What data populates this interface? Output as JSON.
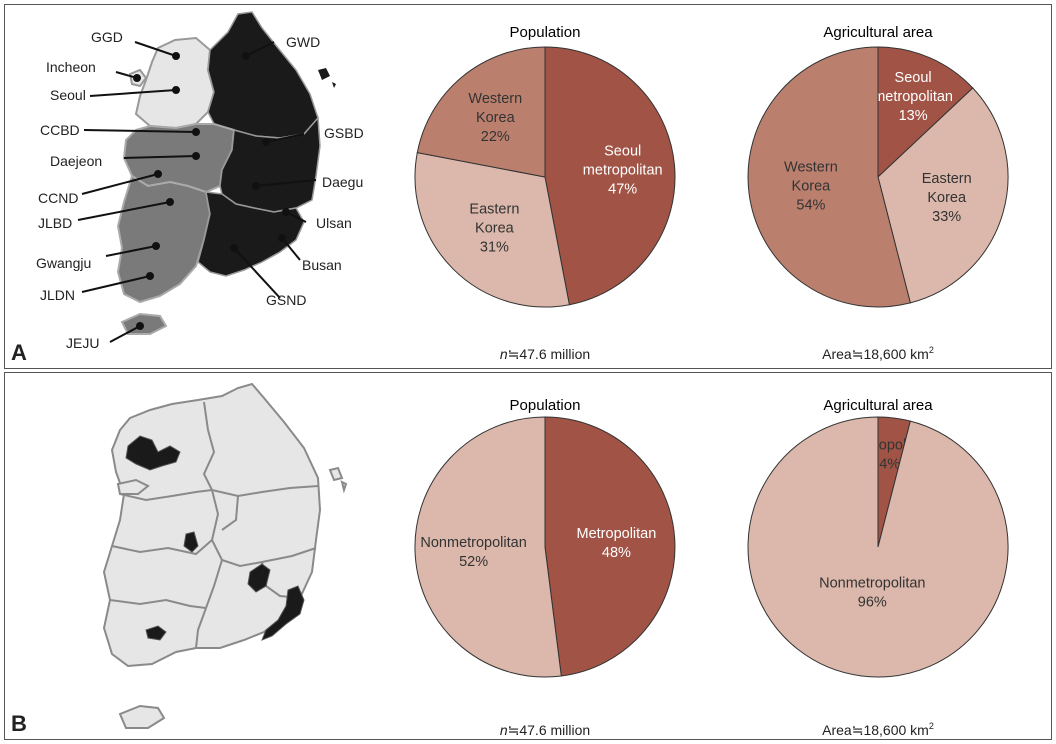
{
  "panels": {
    "a": {
      "letter": "A",
      "map_labels": [
        "GGD",
        "Incheon",
        "Seoul",
        "CCBD",
        "Daejeon",
        "CCND",
        "JLBD",
        "Gwangju",
        "JLDN",
        "JEJU",
        "GWD",
        "GSBD",
        "Daegu",
        "Ulsan",
        "Busan",
        "GSND"
      ]
    },
    "b": {
      "letter": "B"
    }
  },
  "colors": {
    "dark_red": "#a15446",
    "mid_red": "#bb7f6e",
    "light_pink": "#dbb8ab",
    "map_dark": "#1a1a1a",
    "map_gray": "#7a7a7a",
    "map_light": "#e6e6e6"
  },
  "chart_data": [
    {
      "type": "pie",
      "panel": "A",
      "title": "Population",
      "slices": [
        {
          "label": [
            "Seoul",
            "metropolitan"
          ],
          "value": 47,
          "pct": "47%",
          "color": "#a15446",
          "text": "light"
        },
        {
          "label": [
            "Eastern",
            "Korea"
          ],
          "value": 31,
          "pct": "31%",
          "color": "#dbb8ab",
          "text": "dark"
        },
        {
          "label": [
            "Western",
            "Korea"
          ],
          "value": 22,
          "pct": "22%",
          "color": "#bb7f6e",
          "text": "dark"
        }
      ],
      "footnote": {
        "prefix": "n",
        "rest": "≒47.6 million",
        "sup": ""
      }
    },
    {
      "type": "pie",
      "panel": "A",
      "title": "Agricultural area",
      "slices": [
        {
          "label": [
            "Seoul",
            "metropolitan"
          ],
          "value": 13,
          "pct": "13%",
          "color": "#a15446",
          "text": "light"
        },
        {
          "label": [
            "Eastern",
            "Korea"
          ],
          "value": 33,
          "pct": "33%",
          "color": "#dbb8ab",
          "text": "dark"
        },
        {
          "label": [
            "Western",
            "Korea"
          ],
          "value": 54,
          "pct": "54%",
          "color": "#bb7f6e",
          "text": "dark"
        }
      ],
      "footnote": {
        "prefix": "",
        "rest": "Area≒18,600 km",
        "sup": "2"
      }
    },
    {
      "type": "pie",
      "panel": "B",
      "title": "Population",
      "slices": [
        {
          "label": [
            "Metropolitan"
          ],
          "value": 48,
          "pct": "48%",
          "color": "#a15446",
          "text": "light"
        },
        {
          "label": [
            "Nonmetropolitan"
          ],
          "value": 52,
          "pct": "52%",
          "color": "#dbb8ab",
          "text": "dark"
        }
      ],
      "footnote": {
        "prefix": "n",
        "rest": "≒47.6 million",
        "sup": ""
      }
    },
    {
      "type": "pie",
      "panel": "B",
      "title": "Agricultural area",
      "slices": [
        {
          "label": [
            "Metropolitan"
          ],
          "value": 4,
          "pct": "4%",
          "color": "#a15446",
          "text": "dark"
        },
        {
          "label": [
            "Nonmetropolitan"
          ],
          "value": 96,
          "pct": "96%",
          "color": "#dbb8ab",
          "text": "dark"
        }
      ],
      "footnote": {
        "prefix": "",
        "rest": "Area≒18,600 km",
        "sup": "2"
      }
    }
  ]
}
